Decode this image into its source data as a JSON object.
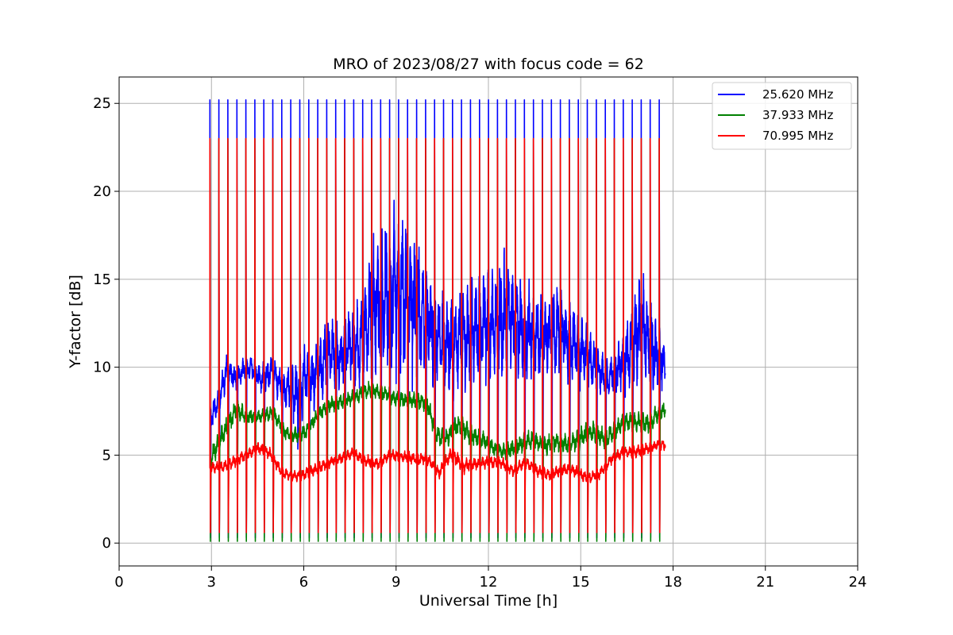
{
  "chart_data": {
    "type": "line",
    "title": "MRO of 2023/08/27 with focus code = 62",
    "xlabel": "Universal Time [h]",
    "ylabel": "Y-factor [dB]",
    "xlim": [
      0,
      24
    ],
    "ylim": [
      -1.3,
      26.5
    ],
    "xticks": [
      0,
      3,
      6,
      9,
      12,
      15,
      18,
      21,
      24
    ],
    "yticks": [
      0,
      5,
      10,
      15,
      20,
      25
    ],
    "grid": true,
    "legend_position": "top-right",
    "calibration_pulses": {
      "start": 2.95,
      "end": 17.55,
      "count": 51,
      "peak": {
        "25.620 MHz": 25.2,
        "37.933 MHz": 23.0,
        "70.995 MHz": 23.0
      },
      "trough": {
        "25.620 MHz": 0.3,
        "37.933 MHz": 0.1,
        "70.995 MHz": 0.6
      }
    },
    "series": [
      {
        "name": "25.620 MHz",
        "color": "#0000ff",
        "x": [
          2.95,
          3.2,
          3.5,
          3.8,
          4.0,
          4.3,
          4.6,
          5.0,
          5.3,
          5.6,
          5.8,
          6.0,
          6.3,
          6.6,
          6.9,
          7.2,
          7.5,
          7.8,
          8.0,
          8.3,
          8.6,
          8.9,
          9.2,
          9.5,
          9.8,
          10.1,
          10.4,
          10.7,
          11.0,
          11.3,
          11.6,
          11.9,
          12.2,
          12.5,
          12.8,
          13.1,
          13.4,
          13.7,
          14.0,
          14.3,
          14.6,
          14.9,
          15.2,
          15.5,
          15.8,
          16.1,
          16.4,
          16.7,
          17.0,
          17.3,
          17.55,
          17.75
        ],
        "y": [
          7.0,
          8.0,
          9.8,
          9.3,
          9.8,
          10.0,
          9.3,
          9.8,
          8.7,
          9.0,
          8.4,
          9.5,
          9.3,
          10.2,
          10.8,
          10.6,
          11.4,
          11.1,
          12.4,
          13.3,
          13.8,
          14.2,
          14.4,
          13.7,
          13.1,
          12.4,
          11.8,
          11.1,
          11.4,
          11.8,
          12.2,
          12.6,
          12.4,
          12.8,
          12.7,
          12.1,
          12.0,
          11.5,
          11.8,
          12.1,
          11.6,
          11.1,
          10.6,
          10.0,
          9.4,
          9.7,
          10.2,
          11.3,
          12.2,
          11.1,
          10.5,
          10.2
        ],
        "amplitude": [
          0.6,
          0.8,
          0.8,
          0.6,
          0.6,
          0.6,
          0.7,
          1.0,
          1.0,
          1.2,
          2.5,
          1.6,
          1.6,
          1.8,
          1.8,
          1.6,
          1.7,
          2.2,
          3.0,
          3.6,
          4.0,
          4.2,
          4.4,
          4.0,
          3.5,
          3.0,
          2.6,
          2.4,
          2.6,
          2.8,
          3.0,
          3.0,
          3.1,
          3.2,
          3.0,
          2.8,
          2.5,
          2.2,
          2.2,
          2.4,
          2.2,
          2.0,
          1.6,
          1.2,
          1.0,
          1.2,
          1.6,
          2.5,
          2.8,
          2.4,
          1.6,
          1.2
        ]
      },
      {
        "name": "37.933 MHz",
        "color": "#008000",
        "x": [
          2.95,
          3.2,
          3.5,
          3.8,
          4.2,
          4.6,
          5.0,
          5.4,
          5.8,
          6.1,
          6.5,
          6.9,
          7.3,
          7.7,
          8.1,
          8.5,
          9.0,
          9.5,
          10.0,
          10.3,
          10.6,
          11.0,
          11.4,
          11.8,
          12.2,
          12.6,
          13.0,
          13.4,
          13.8,
          14.2,
          14.6,
          15.0,
          15.4,
          15.8,
          16.1,
          16.4,
          16.8,
          17.2,
          17.5,
          17.75
        ],
        "y": [
          4.6,
          5.6,
          6.6,
          7.6,
          7.2,
          7.2,
          7.4,
          6.3,
          6.1,
          6.4,
          7.4,
          7.9,
          8.1,
          8.3,
          8.7,
          8.6,
          8.2,
          8.1,
          8.0,
          6.2,
          5.9,
          6.7,
          6.2,
          5.9,
          5.3,
          5.2,
          5.6,
          5.9,
          5.5,
          5.8,
          5.6,
          6.0,
          6.3,
          5.9,
          6.4,
          6.9,
          6.9,
          6.8,
          7.3,
          7.6
        ],
        "amplitude": [
          0.5,
          0.6,
          0.6,
          0.5,
          0.4,
          0.4,
          0.4,
          0.4,
          0.4,
          0.4,
          0.4,
          0.4,
          0.4,
          0.4,
          0.4,
          0.4,
          0.4,
          0.4,
          0.5,
          0.5,
          0.5,
          0.6,
          0.5,
          0.5,
          0.4,
          0.4,
          0.5,
          0.5,
          0.5,
          0.5,
          0.5,
          0.6,
          0.6,
          0.5,
          0.5,
          0.5,
          0.5,
          0.5,
          0.5,
          0.4
        ]
      },
      {
        "name": "70.995 MHz",
        "color": "#ff0000",
        "x": [
          2.95,
          3.3,
          3.7,
          4.1,
          4.5,
          4.9,
          5.3,
          5.7,
          6.0,
          6.4,
          6.8,
          7.2,
          7.6,
          8.0,
          8.4,
          8.8,
          9.2,
          9.6,
          10.0,
          10.4,
          10.8,
          11.2,
          11.6,
          12.0,
          12.4,
          12.8,
          13.2,
          13.6,
          14.0,
          14.4,
          14.8,
          15.2,
          15.6,
          16.0,
          16.4,
          16.8,
          17.2,
          17.5,
          17.75
        ],
        "y": [
          4.3,
          4.3,
          4.6,
          5.0,
          5.4,
          5.1,
          4.0,
          3.8,
          3.9,
          4.2,
          4.6,
          4.8,
          5.1,
          4.7,
          4.5,
          5.0,
          4.9,
          4.8,
          4.8,
          4.0,
          5.1,
          4.4,
          4.5,
          4.6,
          4.6,
          4.1,
          4.6,
          4.1,
          3.9,
          4.2,
          4.1,
          3.7,
          3.9,
          4.8,
          5.2,
          5.2,
          5.4,
          5.6,
          5.6
        ],
        "amplitude": [
          0.3,
          0.3,
          0.3,
          0.3,
          0.3,
          0.3,
          0.3,
          0.3,
          0.3,
          0.3,
          0.3,
          0.3,
          0.3,
          0.3,
          0.3,
          0.3,
          0.3,
          0.3,
          0.3,
          0.3,
          0.4,
          0.4,
          0.3,
          0.3,
          0.3,
          0.3,
          0.3,
          0.3,
          0.3,
          0.3,
          0.3,
          0.3,
          0.3,
          0.3,
          0.3,
          0.3,
          0.3,
          0.3,
          0.3
        ]
      }
    ]
  }
}
